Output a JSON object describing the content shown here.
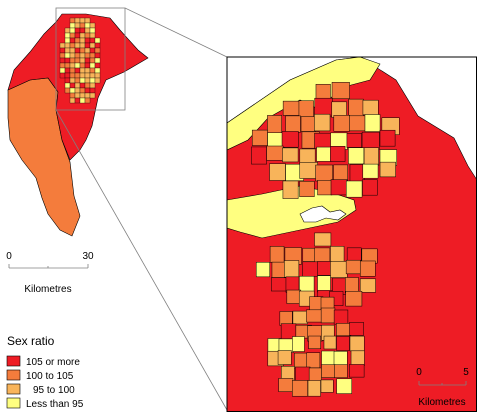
{
  "colors": {
    "c105": "#ee1c25",
    "c100": "#f47c3c",
    "c95": "#f8b45a",
    "cLess": "#ffff80",
    "frame": "#000000",
    "guide": "#808080"
  },
  "overview_scale": {
    "start": "0",
    "end": "30",
    "unit": "Kilometres"
  },
  "inset_scale": {
    "start": "0",
    "end": "5",
    "unit": "Kilometres"
  },
  "legend": {
    "title": "Sex ratio",
    "items": [
      {
        "label": "105 or more",
        "color": "#ee1c25"
      },
      {
        "label": "100 to 105",
        "color": "#f47c3c"
      },
      {
        "label": "95 to 100",
        "color": "#f8b45a"
      },
      {
        "label": "Less than 95",
        "color": "#ffff80"
      }
    ]
  }
}
